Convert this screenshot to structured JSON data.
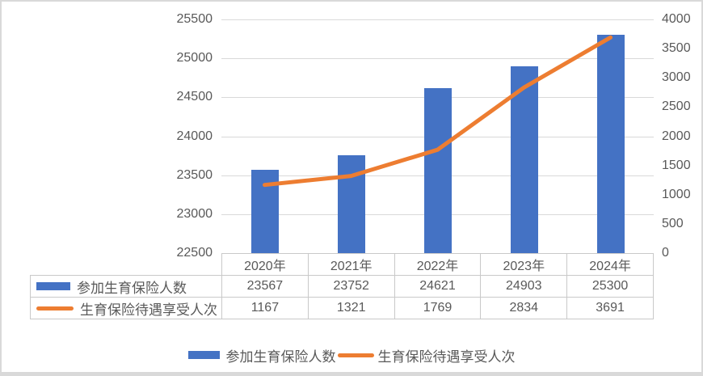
{
  "page": {
    "background": "#ffffff",
    "border_color": "#d9d9d9"
  },
  "chart_data": {
    "type": "bar",
    "subtype": "combo-bar-line-dual-axis",
    "title": "",
    "categories": [
      "2020年",
      "2021年",
      "2022年",
      "2023年",
      "2024年"
    ],
    "series": [
      {
        "name": "参加生育保险人数",
        "type": "bar",
        "axis": "left",
        "color": "#4472C4",
        "values": [
          23567,
          23752,
          24621,
          24903,
          25300
        ]
      },
      {
        "name": "生育保险待遇享受人次",
        "type": "line",
        "axis": "right",
        "color": "#ED7D31",
        "values": [
          1167,
          1321,
          1769,
          2834,
          3691
        ]
      }
    ],
    "left_axis": {
      "min": 22500,
      "max": 25500,
      "step": 500,
      "ticks": [
        25500,
        25000,
        24500,
        24000,
        23500,
        23000,
        22500
      ]
    },
    "right_axis": {
      "min": 0,
      "max": 4000,
      "step": 500,
      "ticks": [
        4000,
        3500,
        3000,
        2500,
        2000,
        1500,
        1000,
        500,
        0
      ]
    },
    "gridlines": true,
    "legend_position": "bottom",
    "data_table_shown": true,
    "text_color": "#595959",
    "gridline_color": "#d9d9d9",
    "table_border_color": "#c9c9c9"
  }
}
